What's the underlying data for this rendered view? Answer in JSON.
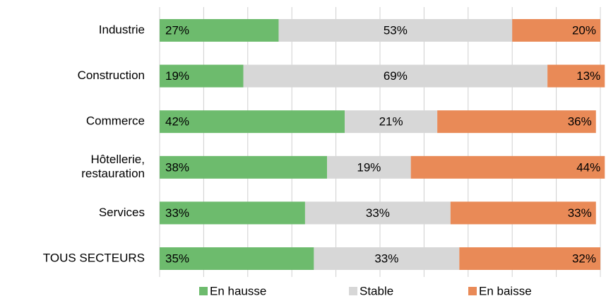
{
  "chart_data": {
    "type": "stacked_barh",
    "categories": [
      "Industrie",
      "Construction",
      "Commerce",
      "Hôtellerie,\nrestauration",
      "Services",
      "TOUS SECTEURS"
    ],
    "series": [
      {
        "name": "En hausse",
        "color": "#6dbb6d",
        "values": [
          27,
          19,
          42,
          38,
          33,
          35
        ],
        "value_labels": [
          "27%",
          "19%",
          "42%",
          "38%",
          "33%",
          "35%"
        ]
      },
      {
        "name": "Stable",
        "color": "#d7d7d7",
        "values": [
          53,
          69,
          21,
          19,
          33,
          33
        ],
        "value_labels": [
          "53%",
          "69%",
          "21%",
          "19%",
          "33%",
          "33%"
        ]
      },
      {
        "name": "En baisse",
        "color": "#e98a57",
        "values": [
          20,
          13,
          36,
          44,
          33,
          32
        ],
        "value_labels": [
          "20%",
          "13%",
          "36%",
          "44%",
          "33%",
          "32%"
        ]
      }
    ],
    "xlim": [
      0,
      100
    ],
    "xticks": [
      0,
      10,
      20,
      30,
      40,
      50,
      60,
      70,
      80,
      90,
      100
    ],
    "grid": true,
    "legend": "bottom"
  }
}
